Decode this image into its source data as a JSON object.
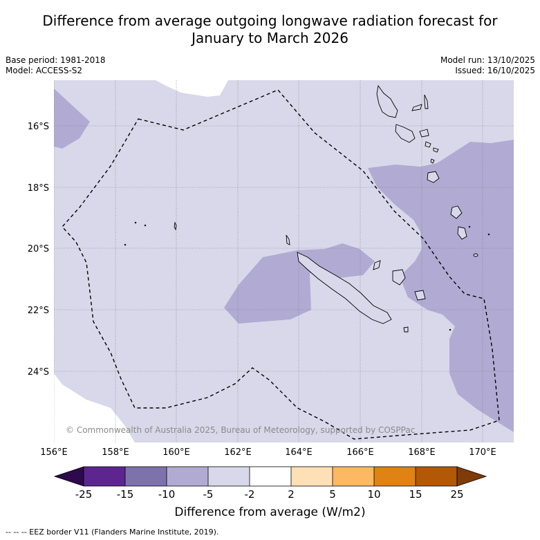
{
  "title_lines": [
    "Difference from average outgoing longwave radiation forecast for",
    "January to March 2026"
  ],
  "meta": {
    "base_period": "Base period: 1981-2018",
    "model": "Model: ACCESS-S2",
    "model_run": "Model run: 13/10/2025",
    "issued": "Issued: 16/10/2025"
  },
  "map": {
    "lat_labels": [
      "16°S",
      "18°S",
      "20°S",
      "22°S",
      "24°S"
    ],
    "lon_labels": [
      "156°E",
      "158°E",
      "160°E",
      "162°E",
      "164°E",
      "166°E",
      "168°E",
      "170°E"
    ],
    "copyright": "© Commonwealth of Australia 2025, Bureau of Meteorology, supported by COSPPac"
  },
  "colorbar": {
    "ticks": [
      "-25",
      "-15",
      "-10",
      "-5",
      "-2",
      "2",
      "5",
      "10",
      "15",
      "25"
    ],
    "colors": [
      "#2d0a4e",
      "#5c2590",
      "#7e72ad",
      "#b1abd3",
      "#d8d8ea",
      "#ffffff",
      "#fee0b6",
      "#fdb863",
      "#e08214",
      "#b35806",
      "#7f3b08"
    ],
    "label": "Difference from average (W/m2)"
  },
  "footer": "--  --  -- EEZ border V11 (Flanders Marine Institute, 2019)."
}
